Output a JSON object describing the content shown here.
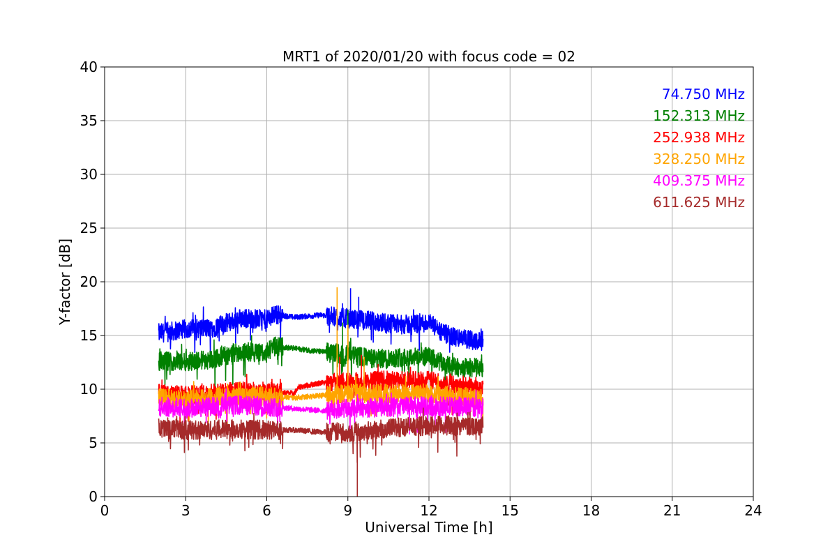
{
  "chart_data": {
    "type": "line",
    "title": "MRT1 of 2020/01/20 with focus code = 02",
    "xlabel": "Universal Time [h]",
    "ylabel": "Y-factor [dB]",
    "xlim": [
      0,
      24
    ],
    "ylim": [
      0,
      40
    ],
    "xticks": [
      0,
      3,
      6,
      9,
      12,
      15,
      18,
      21,
      24
    ],
    "yticks": [
      0,
      5,
      10,
      15,
      20,
      25,
      30,
      35,
      40
    ],
    "grid": true,
    "legend_placement": "top-right",
    "series": [
      {
        "name": "74.750 MHz",
        "color": "#0000ff",
        "profile": [
          [
            2.0,
            15.2
          ],
          [
            3.0,
            15.6
          ],
          [
            4.0,
            15.7
          ],
          [
            5.0,
            16.6
          ],
          [
            6.0,
            16.5
          ],
          [
            6.3,
            17.0
          ],
          [
            7.0,
            16.7
          ],
          [
            8.0,
            16.9
          ],
          [
            9.0,
            16.6
          ],
          [
            10.0,
            16.3
          ],
          [
            11.0,
            16.0
          ],
          [
            12.0,
            16.2
          ],
          [
            12.5,
            15.2
          ],
          [
            13.0,
            14.8
          ],
          [
            13.5,
            14.6
          ],
          [
            14.0,
            14.5
          ]
        ],
        "spikes": [
          [
            9.1,
            19.4
          ],
          [
            9.4,
            18.6
          ],
          [
            8.8,
            18.0
          ]
        ]
      },
      {
        "name": "152.313 MHz",
        "color": "#008000",
        "profile": [
          [
            2.0,
            12.6
          ],
          [
            3.0,
            12.6
          ],
          [
            4.0,
            12.8
          ],
          [
            5.0,
            13.5
          ],
          [
            6.0,
            13.4
          ],
          [
            6.3,
            14.0
          ],
          [
            7.0,
            13.8
          ],
          [
            8.0,
            13.5
          ],
          [
            9.0,
            13.2
          ],
          [
            10.0,
            12.8
          ],
          [
            11.0,
            13.0
          ],
          [
            12.0,
            13.0
          ],
          [
            12.5,
            12.4
          ],
          [
            13.0,
            12.0
          ],
          [
            13.5,
            12.0
          ],
          [
            14.0,
            12.0
          ]
        ],
        "spikes": [
          [
            9.0,
            17.4
          ],
          [
            8.8,
            16.2
          ]
        ]
      },
      {
        "name": "252.938 MHz",
        "color": "#ff0000",
        "profile": [
          [
            2.0,
            9.6
          ],
          [
            3.0,
            9.4
          ],
          [
            4.0,
            9.6
          ],
          [
            5.0,
            9.8
          ],
          [
            6.0,
            9.8
          ],
          [
            7.0,
            9.6
          ],
          [
            7.2,
            10.2
          ],
          [
            8.0,
            10.6
          ],
          [
            9.0,
            10.6
          ],
          [
            10.0,
            10.8
          ],
          [
            11.0,
            10.8
          ],
          [
            12.0,
            10.8
          ],
          [
            12.5,
            10.6
          ],
          [
            13.0,
            10.5
          ],
          [
            13.5,
            10.3
          ],
          [
            14.0,
            10.2
          ]
        ],
        "spikes": [
          [
            8.7,
            13.0
          ],
          [
            9.0,
            14.5
          ],
          [
            9.5,
            13.2
          ]
        ]
      },
      {
        "name": "328.250 MHz",
        "color": "#ffa500",
        "profile": [
          [
            2.0,
            9.2
          ],
          [
            3.0,
            9.0
          ],
          [
            4.0,
            9.2
          ],
          [
            5.0,
            9.4
          ],
          [
            6.0,
            9.4
          ],
          [
            7.0,
            9.2
          ],
          [
            8.0,
            9.4
          ],
          [
            9.0,
            9.6
          ],
          [
            10.0,
            9.6
          ],
          [
            11.0,
            9.6
          ],
          [
            12.0,
            9.6
          ],
          [
            13.0,
            9.3
          ],
          [
            14.0,
            9.2
          ]
        ],
        "spikes": [
          [
            8.6,
            19.5
          ],
          [
            9.0,
            16.0
          ],
          [
            9.6,
            13.0
          ]
        ]
      },
      {
        "name": "409.375 MHz",
        "color": "#ff00ff",
        "profile": [
          [
            2.0,
            8.4
          ],
          [
            3.0,
            8.2
          ],
          [
            4.0,
            8.4
          ],
          [
            5.0,
            8.5
          ],
          [
            6.0,
            8.4
          ],
          [
            7.0,
            8.2
          ],
          [
            8.0,
            8.0
          ],
          [
            9.0,
            8.2
          ],
          [
            10.0,
            8.3
          ],
          [
            11.0,
            8.4
          ],
          [
            12.0,
            8.4
          ],
          [
            13.0,
            8.4
          ],
          [
            14.0,
            8.3
          ]
        ],
        "spikes": []
      },
      {
        "name": "611.625 MHz",
        "color": "#a52a2a",
        "profile": [
          [
            2.0,
            6.6
          ],
          [
            3.0,
            6.2
          ],
          [
            4.0,
            6.2
          ],
          [
            5.0,
            6.3
          ],
          [
            6.0,
            6.2
          ],
          [
            6.6,
            6.2
          ],
          [
            7.0,
            6.2
          ],
          [
            8.0,
            6.0
          ],
          [
            9.0,
            6.0
          ],
          [
            10.0,
            6.2
          ],
          [
            11.0,
            6.5
          ],
          [
            12.0,
            6.6
          ],
          [
            13.0,
            6.6
          ],
          [
            14.0,
            6.6
          ]
        ],
        "spikes": [
          [
            9.35,
            0.0
          ]
        ]
      }
    ],
    "x_start": 2.0,
    "x_end": 14.0
  }
}
